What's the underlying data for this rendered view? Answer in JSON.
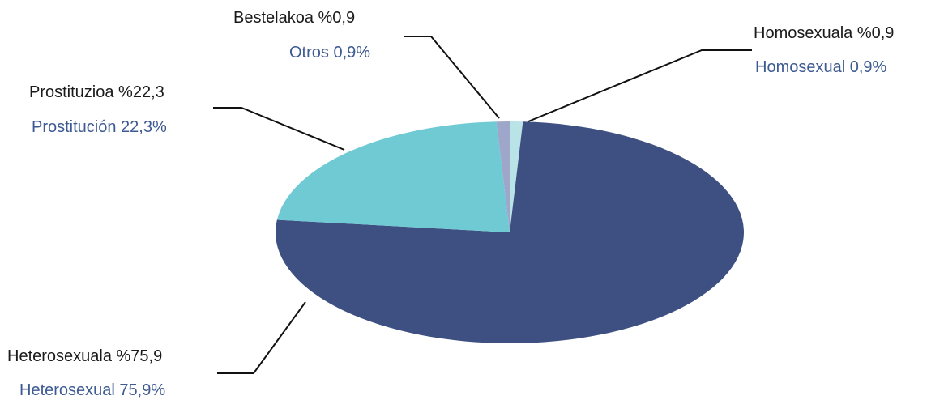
{
  "colors": {
    "label_eu": "#1a1a1a",
    "label_es": "#3d5a92",
    "leader_line": "#111111",
    "background": "#ffffff"
  },
  "chart_data": {
    "type": "pie",
    "title": "",
    "slices": [
      {
        "key": "homosexual",
        "value": 0.9,
        "color": "#b9e3e6",
        "label_eu": "Homosexuala %0,9",
        "label_es": "Homosexual 0,9%"
      },
      {
        "key": "heterosexual",
        "value": 75.9,
        "color": "#3d5081",
        "label_eu": "Heterosexuala %75,9",
        "label_es": "Heterosexual 75,9%"
      },
      {
        "key": "prostitucion",
        "value": 22.3,
        "color": "#6fcad4",
        "label_eu": "Prostituzioa %22,3",
        "label_es": "Prostitución 22,3%"
      },
      {
        "key": "otros",
        "value": 0.9,
        "color": "#9ea7c9",
        "label_eu": "Bestelakoa %0,9",
        "label_es": "Otros 0,9%"
      }
    ]
  }
}
